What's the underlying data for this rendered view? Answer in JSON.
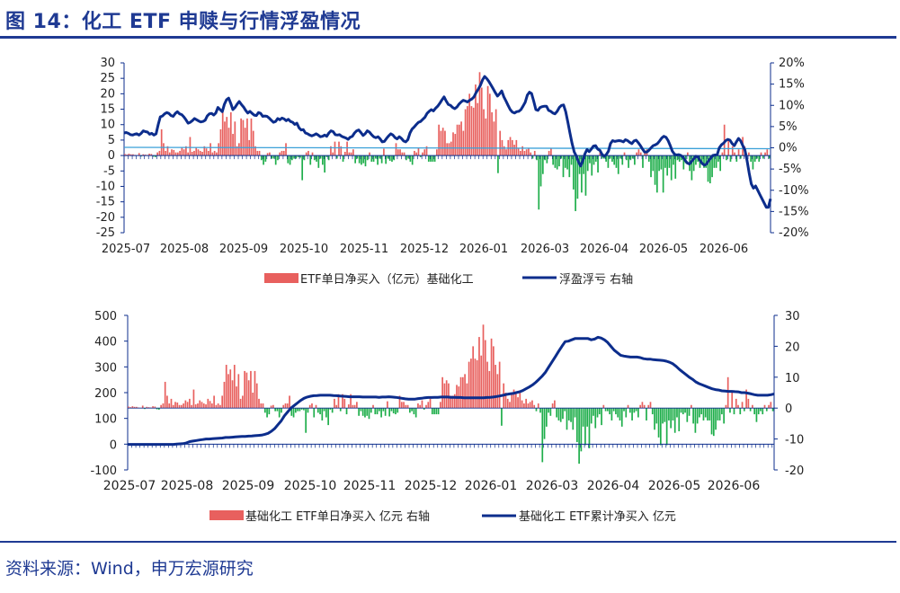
{
  "title": "图 14：化工 ETF 申赎与行情浮盈情况",
  "source": "资料来源：Wind，申万宏源研究",
  "chart_data": [
    {
      "type": "bar+line",
      "x_tick_labels": [
        "2025-07",
        "2025-08",
        "2025-09",
        "2025-10",
        "2025-11",
        "2025-12",
        "2026-01",
        "2026-03",
        "2026-04",
        "2026-05",
        "2026-06"
      ],
      "y_left": {
        "ticks": [
          "30",
          "25",
          "20",
          "15",
          "10",
          "5",
          "0",
          "-5",
          "-10",
          "-15",
          "-20",
          "-25"
        ],
        "range": [
          -25,
          30
        ]
      },
      "y_right": {
        "ticks": [
          "20%",
          "15%",
          "10%",
          "5%",
          "0%",
          "-5%",
          "-10%",
          "-15%",
          "-20%"
        ],
        "range": [
          -20,
          20
        ]
      },
      "legend": [
        {
          "label": "ETF单日净买入（亿元）基础化工",
          "kind": "bar",
          "color": "#e8605e"
        },
        {
          "label": "浮盈浮亏 右轴",
          "kind": "line",
          "color": "#0c2d8c"
        }
      ],
      "reference_line_right": 0,
      "reference_line_color": "#3aa0d8",
      "bar_values": [
        0.5,
        0.3,
        0.6,
        0.4,
        0.4,
        0.2,
        0.1,
        0.8,
        -0.3,
        0.4,
        0.3,
        0.2,
        0.6,
        0.5,
        -0.4,
        -0.5,
        1.0,
        1.5,
        8.5,
        4,
        1.5,
        3,
        1,
        2,
        1.8,
        1,
        1,
        1.5,
        2.5,
        2,
        3,
        1,
        6,
        1.2,
        1.5,
        2.5,
        2,
        1.5,
        1.2,
        3,
        2.3,
        1.5,
        4,
        1,
        1.5,
        1,
        4,
        8.5,
        14,
        11,
        12.5,
        9,
        14,
        7,
        11,
        3,
        4,
        12,
        11.5,
        9,
        12,
        5,
        12,
        8,
        3,
        1.5,
        1.5,
        -1.5,
        -3,
        -2,
        0.8,
        1,
        -1,
        -1,
        -3,
        -1.5,
        1,
        1.5,
        1.5,
        4,
        -2.5,
        -3,
        -1.5,
        -1,
        -1,
        -0.5,
        -0.7,
        -8,
        -1.5,
        1,
        1.5,
        -3,
        1,
        -1.5,
        -2,
        -4,
        -1,
        -3,
        -5.5,
        -0.5,
        -1.5,
        3,
        1,
        4.5,
        -1,
        4.5,
        3,
        -2,
        1.2,
        4.5,
        1,
        1,
        2,
        -2.5,
        -1,
        -2.5,
        -3,
        -2.5,
        -3.5,
        -1.5,
        1,
        -2,
        -2,
        -1,
        -3,
        -1,
        -2.5,
        2.2,
        -2.7,
        -1,
        -1.7,
        -2,
        -1.5,
        4,
        2,
        2,
        1,
        1,
        -1.5,
        -1,
        -2,
        -3,
        1.5,
        1,
        2.5,
        -0.5,
        1,
        2,
        3,
        -2,
        -2,
        -2,
        -2,
        2,
        10,
        8,
        9,
        8,
        4,
        4,
        4.5,
        7.5,
        7,
        10,
        10,
        11,
        8,
        15,
        16,
        20,
        16,
        15.5,
        23,
        17,
        27,
        22,
        15,
        12,
        22.5,
        20,
        14,
        11,
        15,
        -5.7,
        8,
        5,
        3,
        2,
        5,
        6,
        5,
        3.5,
        5,
        2.5,
        1.5,
        3,
        1.5,
        2,
        2.5,
        1,
        -1,
        1.5,
        -1.5,
        -17.5,
        -10,
        -6,
        -1.5,
        -2.5,
        1.5,
        2.5,
        -3,
        -4,
        -4.5,
        -3.5,
        -1,
        -7,
        -4,
        -4.5,
        -7,
        -3,
        -11,
        -18,
        -14,
        -6,
        -12,
        -6,
        -13,
        -5,
        -2.5,
        -6.5,
        -3,
        -2,
        -5.5,
        1,
        -1,
        -1,
        -2,
        -4,
        -1,
        -2,
        -3,
        -4,
        -6,
        -1,
        -3,
        1,
        -1.5,
        -4,
        -1.5,
        -1,
        -3,
        1,
        2,
        1,
        -4,
        1,
        2,
        -2,
        -7,
        -5,
        -9.5,
        -12,
        -5,
        -4.5,
        -12,
        -4,
        -6.5,
        -4,
        -8,
        -3,
        -7.5,
        -1.5,
        -2,
        -1.5,
        -4.5,
        -2.5,
        1,
        -5,
        -8,
        -5,
        -3,
        -2,
        -4,
        -3,
        -4,
        -4,
        -8.5,
        -9,
        -7,
        -4,
        -4,
        -2,
        -5,
        1,
        10,
        -1.5,
        5,
        -2,
        3,
        1,
        -2,
        2,
        -1,
        6,
        3,
        -1,
        1,
        -2,
        -4.5,
        -2,
        -1,
        -2,
        1,
        -1,
        1,
        2,
        -1
      ],
      "line_values": [
        3.5,
        3.6,
        3.4,
        3.1,
        3.0,
        3.2,
        3.3,
        3.0,
        3.4,
        4.0,
        3.8,
        3.7,
        3.2,
        3.4,
        3.0,
        3.3,
        5.5,
        7.3,
        7.5,
        8.0,
        8.3,
        8.1,
        7.6,
        7.4,
        8.1,
        8.5,
        8.0,
        7.8,
        7.3,
        6.6,
        5.8,
        6.0,
        6.4,
        6.9,
        6.6,
        6.3,
        6.1,
        6.2,
        6.5,
        7.5,
        8.0,
        8.1,
        7.7,
        8.2,
        9.5,
        9.0,
        8.5,
        10.2,
        11.3,
        11.7,
        10.5,
        9.0,
        9.5,
        10.3,
        10.9,
        10.2,
        9.6,
        8.8,
        8.2,
        8.6,
        8.1,
        7.7,
        7.6,
        8.3,
        8.1,
        7.4,
        7.5,
        7.4,
        7.0,
        6.5,
        6.0,
        6.2,
        6.9,
        6.6,
        7.0,
        6.8,
        6.4,
        6.7,
        6.2,
        6.0,
        5.5,
        5.8,
        4.7,
        4.2,
        4.3,
        3.5,
        3.3,
        3.0,
        2.8,
        3.0,
        3.3,
        3.0,
        2.6,
        2.7,
        3.0,
        2.7,
        3.5,
        4.0,
        3.8,
        3.1,
        3.0,
        3.1,
        2.7,
        2.5,
        2.3,
        2.0,
        2.5,
        2.7,
        3.5,
        4.0,
        4.2,
        3.6,
        2.9,
        3.3,
        4.0,
        3.7,
        3.1,
        2.6,
        2.4,
        2.6,
        2.1,
        1.4,
        1.5,
        2.2,
        2.8,
        3.3,
        3.0,
        2.4,
        2.1,
        2.6,
        2.2,
        1.6,
        1.4,
        1.9,
        3.5,
        4.4,
        4.9,
        5.5,
        6.0,
        6.2,
        6.7,
        7.2,
        8.1,
        8.6,
        9.0,
        8.7,
        9.3,
        9.8,
        10.5,
        11.3,
        12.0,
        11.0,
        10.2,
        10.0,
        9.5,
        9.2,
        9.6,
        10.3,
        10.8,
        11.2,
        11.0,
        10.8,
        11.2,
        11.5,
        12.0,
        13.0,
        13.8,
        14.7,
        16.0,
        16.8,
        16.3,
        15.6,
        14.8,
        13.9,
        13.0,
        12.2,
        12.7,
        13.4,
        12.0,
        11.0,
        10.0,
        9.0,
        8.4,
        8.2,
        8.5,
        8.6,
        9.0,
        9.8,
        10.7,
        12.4,
        13.1,
        12.8,
        11.0,
        9.0,
        8.8,
        9.5,
        9.7,
        9.8,
        9.8,
        8.8,
        8.6,
        8.2,
        8.0,
        8.6,
        9.5,
        10.0,
        10.1,
        8.5,
        6.0,
        3.5,
        1.0,
        -1.0,
        -2.0,
        -3.3,
        -4.3,
        -3.0,
        -1.4,
        -0.4,
        -0.9,
        -0.3,
        0.4,
        0.5,
        -0.3,
        -0.6,
        -1.5,
        -2.0,
        -1.6,
        -0.8,
        1.0,
        1.7,
        1.5,
        1.6,
        1.7,
        1.6,
        1.4,
        1.9,
        1.7,
        1.3,
        1.0,
        1.6,
        1.8,
        1.2,
        0.5,
        -0.3,
        -1.0,
        -1.0,
        -0.6,
        0.0,
        0.5,
        0.7,
        1.0,
        1.6,
        2.3,
        2.7,
        2.5,
        1.7,
        0.5,
        -0.8,
        -1.5,
        -1.7,
        -1.6,
        -1.8,
        -2.2,
        -3.0,
        -3.6,
        -3.8,
        -3.2,
        -2.6,
        -2.0,
        -2.2,
        -3.0,
        -3.7,
        -4.1,
        -3.8,
        -3.0,
        -2.4,
        -1.8,
        -1.7,
        -1.6,
        0.0,
        0.7,
        1.1,
        1.7,
        2.0,
        1.8,
        1.0,
        0.5,
        1.4,
        2.2,
        1.6,
        0.5,
        -0.5,
        -3.0,
        -6.0,
        -8.5,
        -9.5,
        -9.0,
        -10.0,
        -11.0,
        -12.0,
        -13.0,
        -14.0,
        -14.0,
        -12.0
      ]
    },
    {
      "type": "bar+line",
      "x_tick_labels": [
        "2025-07",
        "2025-08",
        "2025-09",
        "2025-10",
        "2025-11",
        "2025-12",
        "2026-01",
        "2026-03",
        "2026-04",
        "2026-05",
        "2026-06"
      ],
      "y_left": {
        "ticks": [
          "500",
          "400",
          "300",
          "200",
          "100",
          "0",
          "-100"
        ],
        "range": [
          -100,
          500
        ]
      },
      "y_right": {
        "ticks": [
          "30",
          "20",
          "10",
          "0",
          "-10",
          "-20"
        ],
        "range": [
          -20,
          30
        ]
      },
      "legend": [
        {
          "label": "基础化工 ETF单日净买入 亿元 右轴",
          "kind": "bar",
          "color": "#e8605e"
        },
        {
          "label": "基础化工 ETF累计净买入 亿元",
          "kind": "line",
          "color": "#0c2d8c"
        }
      ],
      "note_bar_values": "same series as chart 1 on right axis",
      "cumulative_line_values": [
        -1,
        -1,
        -1,
        -1,
        -1,
        -1,
        -1,
        -1,
        -1,
        -1,
        -1,
        -1,
        -1,
        -1,
        -1,
        0,
        1,
        2,
        5,
        10,
        12,
        14,
        16,
        18,
        20,
        20,
        21,
        22,
        23,
        24,
        26,
        26,
        27,
        28,
        29,
        30,
        30,
        31,
        32,
        33,
        34,
        35,
        38,
        42,
        50,
        60,
        75,
        90,
        110,
        125,
        140,
        150,
        160,
        170,
        178,
        183,
        186,
        188,
        189,
        190,
        190,
        190,
        190,
        189,
        188,
        187,
        186,
        185,
        184,
        184,
        184,
        184,
        183,
        183,
        183,
        183,
        183,
        182,
        183,
        183,
        184,
        183,
        182,
        180,
        178,
        176,
        175,
        175,
        175,
        177,
        178,
        180,
        181,
        181,
        182,
        182,
        183,
        183,
        183,
        182,
        182,
        181,
        181,
        180,
        180,
        180,
        180,
        180,
        180,
        180,
        181,
        182,
        183,
        185,
        187,
        190,
        193,
        195,
        197,
        200,
        203,
        208,
        215,
        222,
        230,
        240,
        252,
        265,
        280,
        300,
        320,
        340,
        360,
        380,
        398,
        400,
        405,
        410,
        410,
        410,
        410,
        410,
        405,
        408,
        415,
        412,
        405,
        395,
        380,
        365,
        355,
        345,
        342,
        340,
        338,
        338,
        338,
        336,
        332,
        330,
        330,
        328,
        327,
        326,
        325,
        322,
        318,
        312,
        302,
        290,
        280,
        270,
        260,
        252,
        242,
        235,
        230,
        225,
        220,
        215,
        212,
        210,
        207,
        206,
        205,
        205,
        204,
        203,
        200,
        200,
        198,
        195,
        192,
        190,
        190,
        190,
        190,
        192,
        195
      ]
    }
  ]
}
